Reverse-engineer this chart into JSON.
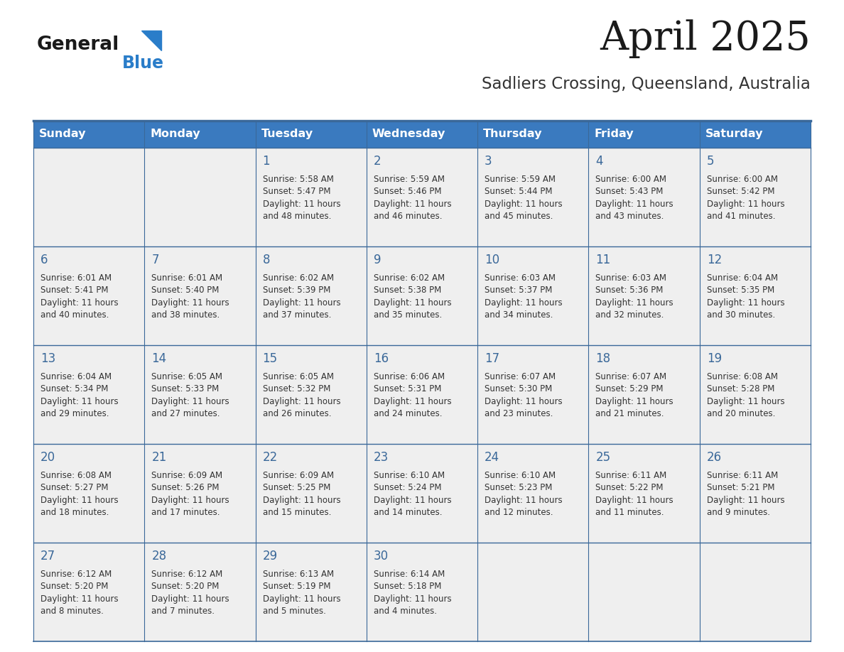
{
  "title": "April 2025",
  "subtitle": "Sadliers Crossing, Queensland, Australia",
  "days_of_week": [
    "Sunday",
    "Monday",
    "Tuesday",
    "Wednesday",
    "Thursday",
    "Friday",
    "Saturday"
  ],
  "header_bg": "#3a7abf",
  "header_text": "#ffffff",
  "row_bg": "#efefef",
  "border_color": "#3a6899",
  "day_num_color": "#3a6899",
  "text_color": "#333333",
  "title_color": "#1a1a1a",
  "subtitle_color": "#333333",
  "logo_general_color": "#1a1a1a",
  "logo_blue_color": "#2a7dc9",
  "calendar_data": [
    [
      "",
      "",
      "1\nSunrise: 5:58 AM\nSunset: 5:47 PM\nDaylight: 11 hours\nand 48 minutes.",
      "2\nSunrise: 5:59 AM\nSunset: 5:46 PM\nDaylight: 11 hours\nand 46 minutes.",
      "3\nSunrise: 5:59 AM\nSunset: 5:44 PM\nDaylight: 11 hours\nand 45 minutes.",
      "4\nSunrise: 6:00 AM\nSunset: 5:43 PM\nDaylight: 11 hours\nand 43 minutes.",
      "5\nSunrise: 6:00 AM\nSunset: 5:42 PM\nDaylight: 11 hours\nand 41 minutes."
    ],
    [
      "6\nSunrise: 6:01 AM\nSunset: 5:41 PM\nDaylight: 11 hours\nand 40 minutes.",
      "7\nSunrise: 6:01 AM\nSunset: 5:40 PM\nDaylight: 11 hours\nand 38 minutes.",
      "8\nSunrise: 6:02 AM\nSunset: 5:39 PM\nDaylight: 11 hours\nand 37 minutes.",
      "9\nSunrise: 6:02 AM\nSunset: 5:38 PM\nDaylight: 11 hours\nand 35 minutes.",
      "10\nSunrise: 6:03 AM\nSunset: 5:37 PM\nDaylight: 11 hours\nand 34 minutes.",
      "11\nSunrise: 6:03 AM\nSunset: 5:36 PM\nDaylight: 11 hours\nand 32 minutes.",
      "12\nSunrise: 6:04 AM\nSunset: 5:35 PM\nDaylight: 11 hours\nand 30 minutes."
    ],
    [
      "13\nSunrise: 6:04 AM\nSunset: 5:34 PM\nDaylight: 11 hours\nand 29 minutes.",
      "14\nSunrise: 6:05 AM\nSunset: 5:33 PM\nDaylight: 11 hours\nand 27 minutes.",
      "15\nSunrise: 6:05 AM\nSunset: 5:32 PM\nDaylight: 11 hours\nand 26 minutes.",
      "16\nSunrise: 6:06 AM\nSunset: 5:31 PM\nDaylight: 11 hours\nand 24 minutes.",
      "17\nSunrise: 6:07 AM\nSunset: 5:30 PM\nDaylight: 11 hours\nand 23 minutes.",
      "18\nSunrise: 6:07 AM\nSunset: 5:29 PM\nDaylight: 11 hours\nand 21 minutes.",
      "19\nSunrise: 6:08 AM\nSunset: 5:28 PM\nDaylight: 11 hours\nand 20 minutes."
    ],
    [
      "20\nSunrise: 6:08 AM\nSunset: 5:27 PM\nDaylight: 11 hours\nand 18 minutes.",
      "21\nSunrise: 6:09 AM\nSunset: 5:26 PM\nDaylight: 11 hours\nand 17 minutes.",
      "22\nSunrise: 6:09 AM\nSunset: 5:25 PM\nDaylight: 11 hours\nand 15 minutes.",
      "23\nSunrise: 6:10 AM\nSunset: 5:24 PM\nDaylight: 11 hours\nand 14 minutes.",
      "24\nSunrise: 6:10 AM\nSunset: 5:23 PM\nDaylight: 11 hours\nand 12 minutes.",
      "25\nSunrise: 6:11 AM\nSunset: 5:22 PM\nDaylight: 11 hours\nand 11 minutes.",
      "26\nSunrise: 6:11 AM\nSunset: 5:21 PM\nDaylight: 11 hours\nand 9 minutes."
    ],
    [
      "27\nSunrise: 6:12 AM\nSunset: 5:20 PM\nDaylight: 11 hours\nand 8 minutes.",
      "28\nSunrise: 6:12 AM\nSunset: 5:20 PM\nDaylight: 11 hours\nand 7 minutes.",
      "29\nSunrise: 6:13 AM\nSunset: 5:19 PM\nDaylight: 11 hours\nand 5 minutes.",
      "30\nSunrise: 6:14 AM\nSunset: 5:18 PM\nDaylight: 11 hours\nand 4 minutes.",
      "",
      "",
      ""
    ]
  ],
  "fig_width": 11.88,
  "fig_height": 9.18,
  "dpi": 100
}
